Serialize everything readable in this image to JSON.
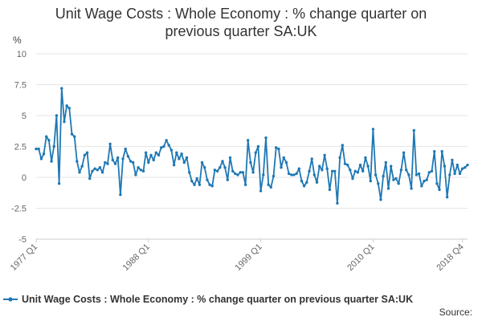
{
  "chart_data": {
    "type": "line",
    "title_line1": "Unit Wage Costs : Whole Economy : % change quarter on",
    "title_line2": "previous quarter SA:UK",
    "ylabel": "%",
    "ylim": [
      -5,
      10
    ],
    "yticks": [
      "10",
      "7.5",
      "5",
      "2.5",
      "0",
      "-2.5",
      "-5"
    ],
    "ytick_values": [
      10,
      7.5,
      5,
      2.5,
      0,
      -2.5,
      -5
    ],
    "x_start": "1977 Q1",
    "x_end": "2018 Q4",
    "xticks": [
      {
        "label": "1977 Q1",
        "index": 0
      },
      {
        "label": "1988 Q1",
        "index": 44
      },
      {
        "label": "1999 Q1",
        "index": 88
      },
      {
        "label": "2010 Q1",
        "index": 132
      },
      {
        "label": "2018 Q4",
        "index": 167
      }
    ],
    "color": "#1f78b4",
    "series": [
      {
        "name": "Unit Wage Costs : Whole Economy : % change quarter on previous quarter SA:UK",
        "values": [
          2.3,
          2.3,
          1.5,
          1.9,
          3.3,
          3.0,
          1.3,
          2.5,
          5.0,
          -0.5,
          7.2,
          4.5,
          5.8,
          5.6,
          3.5,
          3.3,
          1.3,
          0.4,
          0.9,
          1.8,
          2.0,
          -0.1,
          0.5,
          0.7,
          0.6,
          0.8,
          0.4,
          1.2,
          1.1,
          2.7,
          1.4,
          1.1,
          1.6,
          -1.4,
          1.5,
          2.3,
          1.7,
          1.3,
          1.2,
          0.2,
          0.8,
          0.6,
          0.5,
          2.0,
          1.2,
          1.8,
          1.4,
          2.0,
          1.8,
          2.4,
          2.5,
          3.0,
          2.6,
          2.2,
          1.0,
          2.0,
          1.5,
          1.9,
          1.2,
          1.6,
          0.4,
          -0.3,
          -0.6,
          -0.1,
          -0.6,
          1.2,
          0.8,
          -0.2,
          -0.6,
          -0.7,
          0.6,
          0.5,
          0.8,
          1.3,
          0.8,
          -0.2,
          1.6,
          0.5,
          0.3,
          0.2,
          0.4,
          0.4,
          -0.6,
          3.0,
          1.2,
          0.4,
          2.0,
          2.5,
          -1.1,
          0.2,
          3.2,
          -0.6,
          -0.8,
          0.1,
          2.4,
          2.3,
          0.8,
          1.6,
          1.2,
          0.3,
          0.2,
          0.2,
          0.3,
          0.7,
          -0.3,
          -0.7,
          -0.4,
          0.5,
          1.5,
          0.2,
          -0.4,
          0.9,
          0.6,
          1.8,
          0.7,
          -1.0,
          0.5,
          0.5,
          -2.1,
          1.6,
          2.6,
          1.1,
          1.0,
          0.6,
          -0.1,
          0.5,
          0.4,
          1.0,
          0.5,
          1.6,
          0.9,
          -0.3,
          3.9,
          0.2,
          -0.5,
          -1.8,
          0.1,
          1.2,
          -0.9,
          0.9,
          -0.2,
          -0.1,
          -0.5,
          0.6,
          2.0,
          0.6,
          0.2,
          -0.9,
          3.8,
          0.2,
          0.3,
          -0.7,
          -0.3,
          -0.2,
          0.4,
          0.5,
          2.1,
          -0.5,
          -1.0,
          2.1,
          0.9,
          -1.6,
          0.2,
          1.4,
          0.3,
          1.0,
          0.3,
          0.7,
          0.8,
          1.0
        ]
      }
    ]
  },
  "legend": {
    "label": "Unit Wage Costs : Whole Economy : % change quarter on previous quarter SA:UK"
  },
  "source": {
    "label": "Source:"
  }
}
